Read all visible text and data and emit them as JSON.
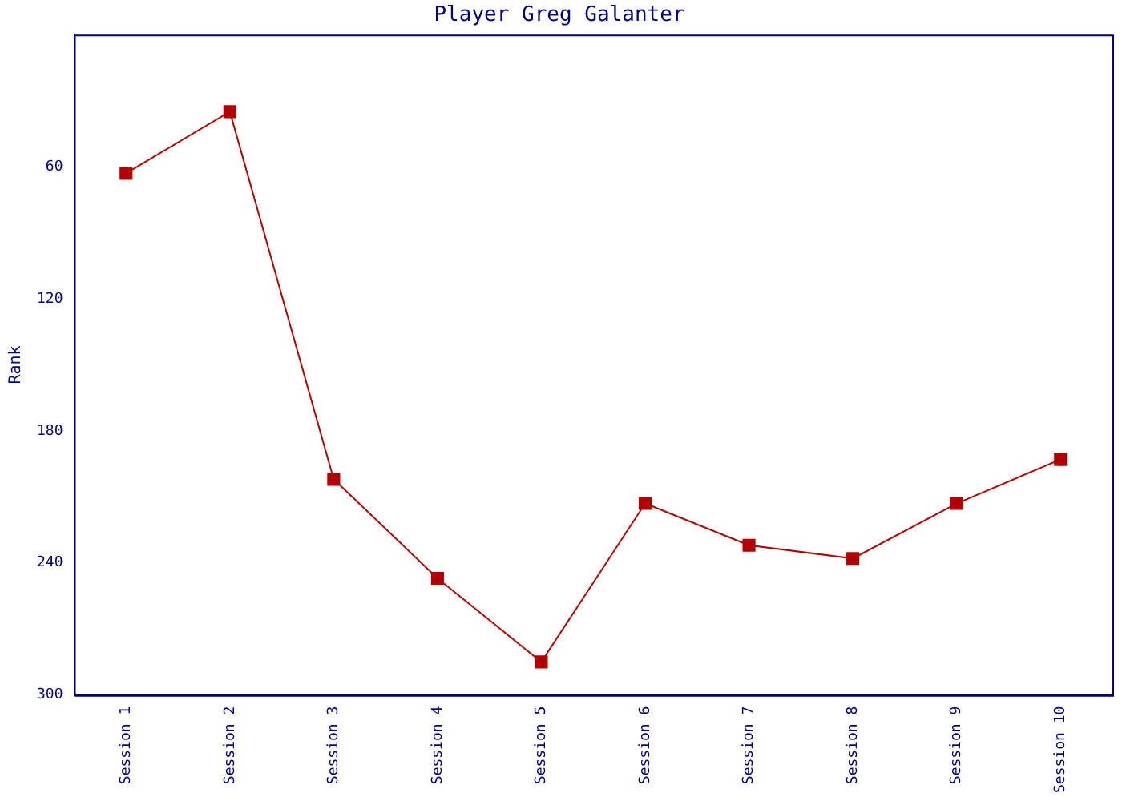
{
  "chart_data": {
    "type": "line",
    "title": "Player Greg Galanter",
    "ylabel": "Rank",
    "categories": [
      "Session 1",
      "Session 2",
      "Session 3",
      "Session 4",
      "Session 5",
      "Session 6",
      "Session 7",
      "Session 8",
      "Session 9",
      "Session 10"
    ],
    "series": [
      {
        "color": "#b40000",
        "values": [
          63,
          35,
          202,
          247,
          285,
          213,
          232,
          238,
          213,
          193
        ]
      }
    ],
    "ylim": [
      300,
      0
    ],
    "yticks": [
      60,
      120,
      180,
      240,
      300
    ],
    "grid": false,
    "legend": false,
    "marker": "square",
    "line_style": "solid"
  }
}
